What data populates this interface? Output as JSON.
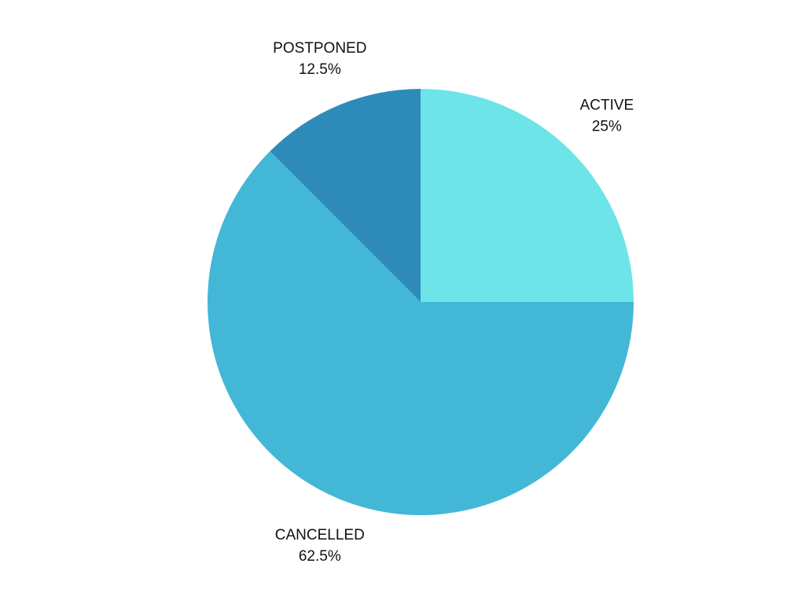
{
  "chart_data": {
    "type": "pie",
    "slices": [
      {
        "label": "ACTIVE",
        "value": 25,
        "value_label": "25%",
        "color": "#6ce4e8"
      },
      {
        "label": "CANCELLED",
        "value": 62.5,
        "value_label": "62.5%",
        "color": "#43b7d6"
      },
      {
        "label": "POSTPONED",
        "value": 12.5,
        "value_label": "12.5%",
        "color": "#2e8bb9"
      }
    ],
    "start_angle": "12 o'clock",
    "direction": "clockwise",
    "labels_outside": true,
    "legend": "none"
  }
}
